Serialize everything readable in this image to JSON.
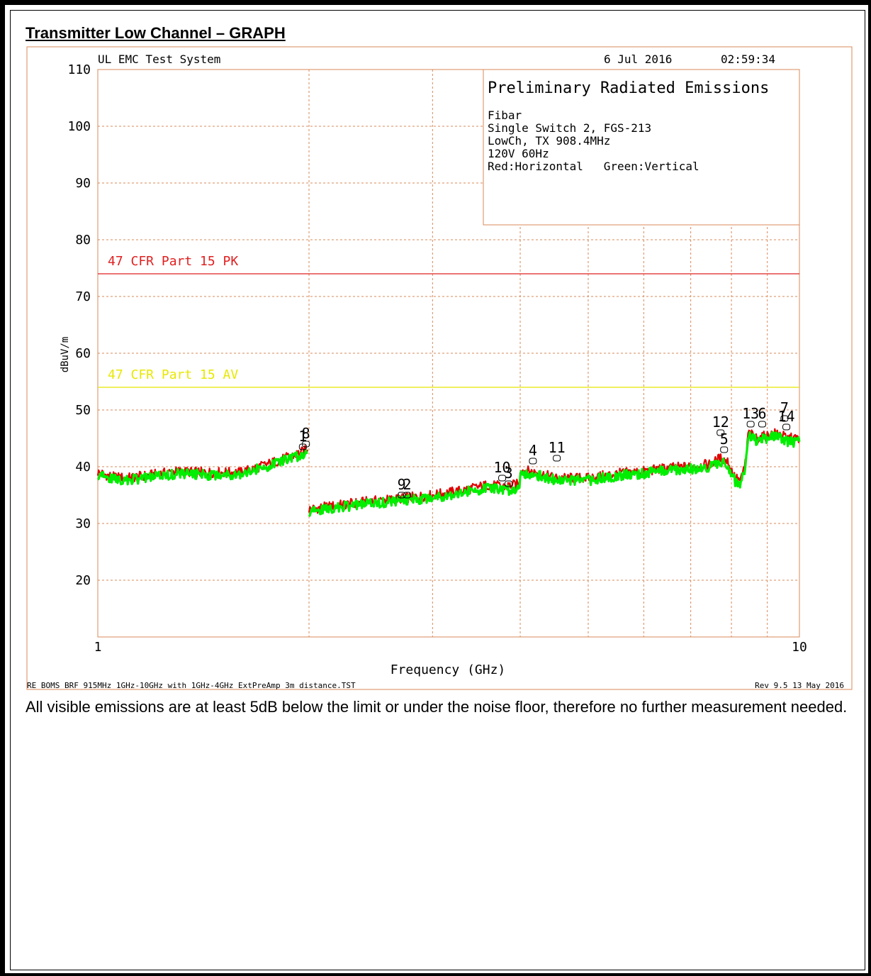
{
  "heading": "Transmitter Low Channel – GRAPH",
  "note": "All visible emissions are at least 5dB below the limit or under the noise floor, therefore no further measurement needed.",
  "plot_header": {
    "system": "UL EMC Test System",
    "date": "6 Jul 2016",
    "time": "02:59:34"
  },
  "info_box": {
    "title": "Preliminary Radiated Emissions",
    "lines": [
      "Fibar",
      "Single Switch 2, FGS-213",
      "LowCh, TX 908.4MHz",
      "120V 60Hz",
      "Red:Horizontal   Green:Vertical"
    ]
  },
  "footer": {
    "left": "RE BOMS BRF 915MHz 1GHz-10GHz with 1GHz-4GHz ExtPreAmp 3m distance.TST",
    "right": "Rev 9.5 13 May 2016"
  },
  "colors": {
    "frame": "#d8885a",
    "grid": "#d8885a",
    "pk_limit": "#e02020",
    "av_limit": "#e8e800",
    "horizontal": "#e00000",
    "vertical": "#00ee00",
    "text": "#000000"
  },
  "chart_data": {
    "type": "line",
    "title": "",
    "xlabel": "Frequency (GHz)",
    "ylabel": "dBuV/m",
    "x_scale": "log",
    "xlim": [
      1,
      10
    ],
    "ylim": [
      10,
      110
    ],
    "x_tick_labels": [
      {
        "value": 1,
        "label": "1"
      },
      {
        "value": 10,
        "label": "10"
      }
    ],
    "x_gridlines": [
      2,
      3,
      4,
      5,
      6,
      7,
      8,
      9
    ],
    "y_ticks": [
      20,
      30,
      40,
      50,
      60,
      70,
      80,
      90,
      100,
      110
    ],
    "grid": true,
    "limits": [
      {
        "name": "47 CFR Part 15 PK",
        "value": 74,
        "color": "#e02020"
      },
      {
        "name": "47 CFR Part 15 AV",
        "value": 54,
        "color": "#e8e800"
      }
    ],
    "series": [
      {
        "name": "Horizontal",
        "color": "#e00000",
        "points": [
          [
            1.0,
            39.0
          ],
          [
            1.05,
            38.2
          ],
          [
            1.1,
            38.0
          ],
          [
            1.2,
            38.6
          ],
          [
            1.3,
            39.2
          ],
          [
            1.4,
            39.0
          ],
          [
            1.5,
            39.0
          ],
          [
            1.6,
            39.0
          ],
          [
            1.7,
            40.0
          ],
          [
            1.8,
            41.0
          ],
          [
            1.9,
            42.0
          ],
          [
            1.99,
            43.0
          ],
          [
            2.0,
            32.5
          ],
          [
            2.2,
            33.2
          ],
          [
            2.4,
            33.8
          ],
          [
            2.6,
            34.2
          ],
          [
            2.8,
            34.6
          ],
          [
            3.0,
            35.0
          ],
          [
            3.3,
            35.8
          ],
          [
            3.6,
            36.8
          ],
          [
            3.8,
            36.5
          ],
          [
            3.99,
            37.0
          ],
          [
            4.0,
            39.5
          ],
          [
            4.2,
            39.0
          ],
          [
            4.5,
            38.0
          ],
          [
            5.0,
            38.0
          ],
          [
            5.5,
            38.8
          ],
          [
            6.0,
            39.2
          ],
          [
            6.5,
            39.8
          ],
          [
            7.0,
            40.0
          ],
          [
            7.5,
            40.5
          ],
          [
            7.7,
            41.5
          ],
          [
            7.9,
            41.0
          ],
          [
            8.1,
            38.0
          ],
          [
            8.25,
            37.5
          ],
          [
            8.4,
            41.5
          ],
          [
            8.45,
            46.0
          ],
          [
            8.7,
            45.0
          ],
          [
            9.0,
            45.5
          ],
          [
            9.3,
            46.0
          ],
          [
            9.6,
            45.0
          ],
          [
            10.0,
            45.0
          ]
        ]
      },
      {
        "name": "Vertical",
        "color": "#00ee00",
        "points": [
          [
            1.0,
            38.5
          ],
          [
            1.05,
            37.8
          ],
          [
            1.1,
            37.6
          ],
          [
            1.2,
            38.2
          ],
          [
            1.3,
            38.8
          ],
          [
            1.4,
            38.6
          ],
          [
            1.5,
            38.6
          ],
          [
            1.6,
            38.8
          ],
          [
            1.7,
            39.6
          ],
          [
            1.8,
            40.6
          ],
          [
            1.9,
            41.6
          ],
          [
            1.99,
            42.5
          ],
          [
            2.0,
            32.0
          ],
          [
            2.2,
            32.8
          ],
          [
            2.4,
            33.4
          ],
          [
            2.6,
            33.8
          ],
          [
            2.8,
            34.2
          ],
          [
            3.0,
            34.6
          ],
          [
            3.3,
            35.4
          ],
          [
            3.6,
            36.2
          ],
          [
            3.8,
            35.8
          ],
          [
            3.99,
            36.2
          ],
          [
            4.0,
            39.0
          ],
          [
            4.2,
            38.6
          ],
          [
            4.5,
            37.6
          ],
          [
            5.0,
            37.6
          ],
          [
            5.5,
            38.4
          ],
          [
            6.0,
            38.8
          ],
          [
            6.5,
            39.4
          ],
          [
            7.0,
            39.6
          ],
          [
            7.5,
            40.0
          ],
          [
            7.7,
            41.0
          ],
          [
            7.9,
            40.4
          ],
          [
            8.1,
            37.4
          ],
          [
            8.25,
            36.5
          ],
          [
            8.4,
            41.0
          ],
          [
            8.45,
            45.5
          ],
          [
            8.7,
            44.5
          ],
          [
            9.0,
            45.0
          ],
          [
            9.3,
            45.5
          ],
          [
            9.6,
            44.4
          ],
          [
            10.0,
            44.4
          ]
        ]
      }
    ],
    "markers": [
      {
        "label": "8",
        "x": 1.98,
        "y": 44.0
      },
      {
        "label": "1",
        "x": 1.96,
        "y": 43.5
      },
      {
        "label": "9",
        "x": 2.71,
        "y": 35.0
      },
      {
        "label": "2",
        "x": 2.76,
        "y": 35.0
      },
      {
        "label": "10",
        "x": 3.77,
        "y": 38.0
      },
      {
        "label": "3",
        "x": 3.85,
        "y": 37.0
      },
      {
        "label": "4",
        "x": 4.17,
        "y": 41.0
      },
      {
        "label": "11",
        "x": 4.51,
        "y": 41.5
      },
      {
        "label": "12",
        "x": 7.72,
        "y": 46.0
      },
      {
        "label": "5",
        "x": 7.81,
        "y": 43.0
      },
      {
        "label": "13",
        "x": 8.52,
        "y": 47.5
      },
      {
        "label": "6",
        "x": 8.85,
        "y": 47.5
      },
      {
        "label": "7",
        "x": 9.52,
        "y": 48.5
      },
      {
        "label": "14",
        "x": 9.58,
        "y": 47.0
      }
    ]
  }
}
